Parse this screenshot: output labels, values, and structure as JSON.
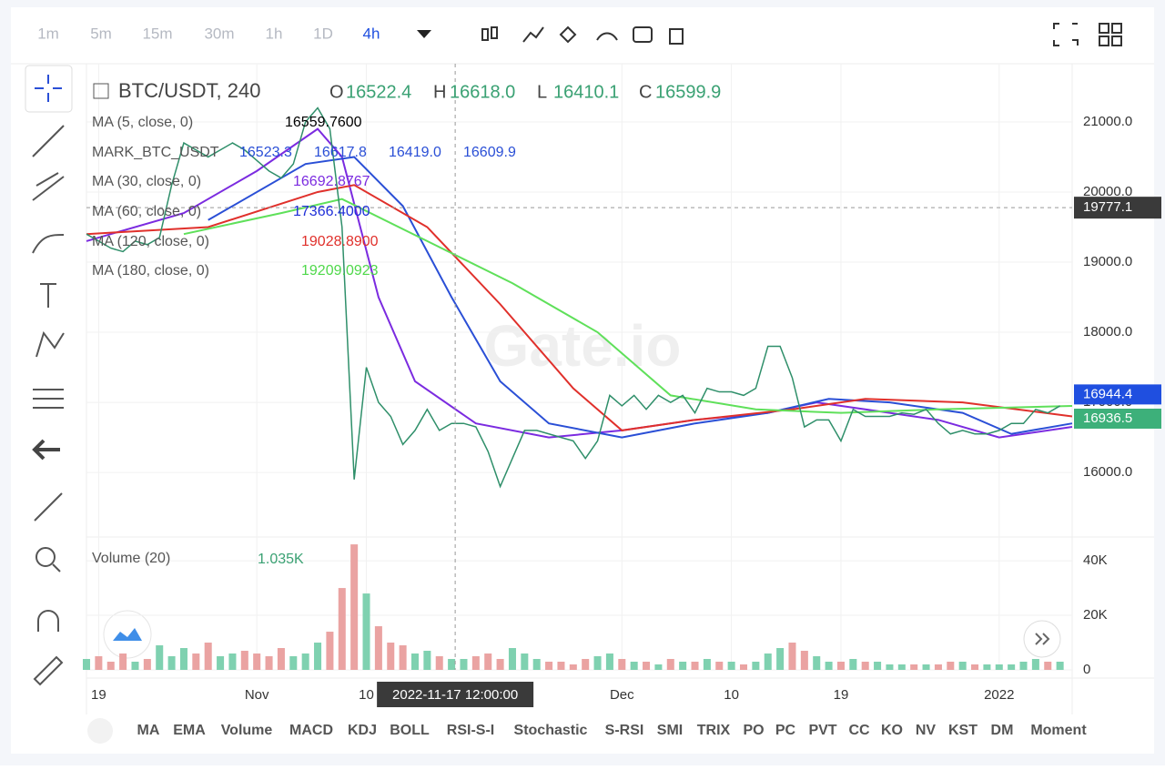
{
  "toolbar": {
    "intervals": [
      "1m",
      "5m",
      "15m",
      "30m",
      "1h",
      "1D",
      "4h"
    ],
    "active": 6
  },
  "watermark": "Gate.io",
  "indicator_tabs": [
    "MA",
    "EMA",
    "Volume",
    "MACD",
    "KDJ",
    "BOLL",
    "RSI-S-I",
    "Stochastic",
    "S-RSI",
    "SMI",
    "TRIX",
    "PO",
    "PC",
    "PVT",
    "CC",
    "KO",
    "NV",
    "KST",
    "DM",
    "Moment"
  ],
  "chart_data": {
    "type": "line",
    "symbol": "BTC/USDT, 240",
    "ohlc": [
      {
        "key": "O",
        "value": "16522.4"
      },
      {
        "key": "H",
        "value": "16618.0"
      },
      {
        "key": "L",
        "value": "16410.1"
      },
      {
        "key": "C",
        "value": "16599.9"
      }
    ],
    "indicators": [
      {
        "name": "MA (5, close, 0)",
        "readings": [
          "16559.7600"
        ],
        "color": "#000000"
      },
      {
        "name": "MARK_BTC_USDT",
        "readings": [
          "16523.3",
          "16617.8",
          "16419.0",
          "16609.9"
        ],
        "color": "#2a4fd6"
      },
      {
        "name": "MA (30, close, 0)",
        "readings": [
          "16692.8767"
        ],
        "color": "#7b2be0"
      },
      {
        "name": "MA (60, close, 0)",
        "readings": [
          "17366.4000"
        ],
        "color": "#1f2fd8"
      },
      {
        "name": "MA (120, close, 0)",
        "readings": [
          "19028.8900"
        ],
        "color": "#e0302b"
      },
      {
        "name": "MA (180, close, 0)",
        "readings": [
          "19209.0923"
        ],
        "color": "#4fd84a"
      }
    ],
    "x": [
      0,
      1,
      2,
      3,
      4,
      5,
      6,
      7,
      8,
      9,
      10,
      11,
      12,
      13,
      14,
      15,
      16,
      17,
      18,
      19,
      20,
      21,
      22,
      23,
      24,
      25,
      26,
      27,
      28,
      29,
      30,
      31,
      32,
      33,
      34,
      35,
      36,
      37,
      38,
      39,
      40,
      41,
      42,
      43,
      44,
      45,
      46,
      47,
      48,
      49,
      50,
      51,
      52,
      53,
      54,
      55,
      56,
      57,
      58,
      59,
      60,
      61,
      62,
      63,
      64,
      65,
      66,
      67,
      68,
      69,
      70,
      71,
      72,
      73,
      74,
      75,
      76,
      77,
      78,
      79,
      80
    ],
    "values": [
      19400,
      19300,
      19200,
      19150,
      19300,
      19250,
      19350,
      20100,
      20700,
      20600,
      20500,
      20600,
      20700,
      20600,
      20450,
      20300,
      20200,
      20400,
      21000,
      21200,
      20900,
      19500,
      15900,
      17500,
      17000,
      16800,
      16400,
      16600,
      16900,
      16600,
      16700,
      16700,
      16650,
      16300,
      15800,
      16200,
      16600,
      16600,
      16550,
      16500,
      16450,
      16200,
      16450,
      17100,
      16950,
      17100,
      16900,
      17100,
      17000,
      17100,
      16850,
      17200,
      17150,
      17150,
      17100,
      17200,
      17800,
      17800,
      17350,
      16650,
      16750,
      16750,
      16450,
      16900,
      16800,
      16800,
      16800,
      16850,
      16830,
      16900,
      16700,
      16550,
      16600,
      16550,
      16550,
      16600,
      16700,
      16700,
      16900,
      16850,
      16950
    ],
    "line_color": "#2f8f6a",
    "series": [
      {
        "color": "#7b2be0",
        "x": [
          0,
          8,
          14,
          19,
          21,
          24,
          27,
          32,
          38,
          44,
          50,
          56,
          60,
          64,
          70,
          75,
          81
        ],
        "values": [
          19300,
          19700,
          20300,
          20900,
          20500,
          18500,
          17300,
          16700,
          16500,
          16600,
          16750,
          16850,
          17000,
          16900,
          16750,
          16500,
          16650
        ]
      },
      {
        "color": "#2a4fd6",
        "x": [
          10,
          18,
          22,
          26,
          30,
          34,
          38,
          44,
          50,
          56,
          61,
          66,
          72,
          76,
          81
        ],
        "values": [
          19600,
          20400,
          20500,
          19800,
          18500,
          17300,
          16700,
          16500,
          16700,
          16850,
          17050,
          17000,
          16850,
          16550,
          16700
        ]
      },
      {
        "color": "#e0302b",
        "x": [
          0,
          10,
          19,
          22,
          28,
          34,
          40,
          44,
          50,
          58,
          64,
          72,
          81
        ],
        "values": [
          19400,
          19500,
          20000,
          20100,
          19500,
          18400,
          17200,
          16600,
          16750,
          16900,
          17050,
          17000,
          16800
        ]
      },
      {
        "color": "#5fe05a",
        "x": [
          8,
          16,
          21,
          28,
          35,
          42,
          48,
          55,
          62,
          70,
          81
        ],
        "values": [
          19400,
          19700,
          19900,
          19300,
          18700,
          18000,
          17100,
          16900,
          16850,
          16900,
          16950
        ]
      }
    ],
    "xlim": [
      0,
      81
    ],
    "xticks": [
      {
        "value": 1,
        "label": "19"
      },
      {
        "value": 14,
        "label": "Nov"
      },
      {
        "value": 23,
        "label": "10"
      },
      {
        "value": 44,
        "label": "Dec"
      },
      {
        "value": 53,
        "label": "10"
      },
      {
        "value": 62,
        "label": "19"
      },
      {
        "value": 75,
        "label": "2022"
      }
    ],
    "ylim": [
      15080,
      21830
    ],
    "yticks": [
      {
        "value": 16000,
        "label": "16000.0"
      },
      {
        "value": 17000,
        "label": "17000.0"
      },
      {
        "value": 18000,
        "label": "18000.0"
      },
      {
        "value": 19000,
        "label": "19000.0"
      },
      {
        "value": 20000,
        "label": "20000.0"
      },
      {
        "value": 21000,
        "label": "21000.0"
      }
    ],
    "crosshair": {
      "x": 30.3,
      "x_label": "2022-11-17 12:00:00",
      "price": 19777.1
    },
    "price_tags": [
      {
        "value": 16944.4,
        "color": "#1f4fe0"
      },
      {
        "value": 16936.5,
        "color": "#3db07a"
      }
    ],
    "volume": {
      "label": "Volume (20)",
      "reading": "1.035K",
      "ylim": [
        0,
        46700
      ],
      "yticks": [
        0,
        {
          "value": 20000,
          "label": "20K"
        },
        {
          "value": 40000,
          "label": "40K"
        }
      ],
      "up_color": "#7fd1b0",
      "down_color": "#eaa3a2",
      "values": [
        4000,
        5000,
        3000,
        6000,
        3000,
        4000,
        9000,
        5000,
        8000,
        6000,
        10000,
        5000,
        6000,
        7000,
        6000,
        5000,
        8000,
        5000,
        6000,
        10000,
        14000,
        30000,
        46000,
        28000,
        16000,
        10000,
        9000,
        6000,
        7000,
        5000,
        4000,
        4000,
        5000,
        6000,
        4000,
        8000,
        6000,
        4000,
        3000,
        3000,
        2000,
        4000,
        5000,
        6000,
        4000,
        3000,
        3000,
        2000,
        4000,
        3000,
        3000,
        4000,
        3000,
        3000,
        2000,
        3000,
        6000,
        8000,
        10000,
        7000,
        5000,
        3000,
        3000,
        4000,
        3000,
        3000,
        2000,
        2000,
        2000,
        2000,
        2000,
        3000,
        3000,
        2000,
        2000,
        2000,
        2000,
        3000,
        4000,
        3000,
        3000
      ]
    }
  }
}
